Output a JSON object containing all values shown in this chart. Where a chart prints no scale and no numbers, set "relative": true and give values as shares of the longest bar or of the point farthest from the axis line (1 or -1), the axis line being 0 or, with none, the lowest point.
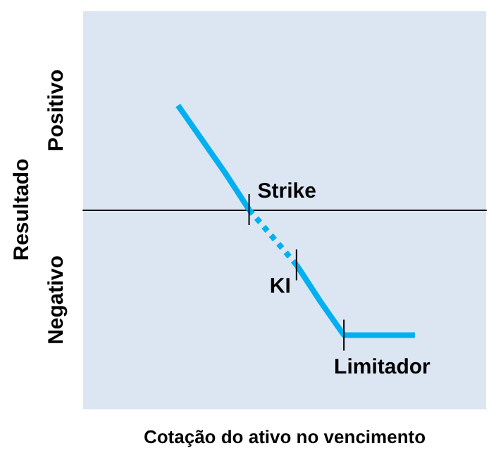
{
  "chart_data": {
    "type": "line",
    "relative": true,
    "xlabel": "Cotação do ativo no vencimento",
    "ylabel": "Resultado",
    "categories": [
      null,
      null,
      null,
      null,
      null,
      null,
      null,
      null,
      null,
      null,
      null,
      null,
      null,
      null,
      null,
      null,
      null,
      null
    ],
    "series": [
      {
        "color": "#00b0f0",
        "line_style": "solid",
        "values": [
          null,
          null,
          null,
          null,
          0.83,
          0.56,
          0.29,
          0,
          null,
          null,
          null,
          null,
          null,
          null,
          null,
          null,
          null,
          null
        ]
      },
      {
        "color": "#00b0f0",
        "line_style": "dotted",
        "values": [
          null,
          null,
          null,
          null,
          null,
          null,
          null,
          0,
          -0.22,
          -0.44,
          null,
          null,
          null,
          null,
          null,
          null,
          null,
          null
        ]
      },
      {
        "color": "#00b0f0",
        "line_style": "solid",
        "values": [
          null,
          null,
          null,
          null,
          null,
          null,
          null,
          null,
          null,
          -0.44,
          -0.73,
          -1,
          -1,
          -1,
          -1,
          null,
          null,
          null
        ]
      }
    ],
    "annotations": [
      "Strike",
      "KI",
      "Limitador",
      "Positivo",
      "Negativo"
    ],
    "grid": false,
    "marker": "none"
  }
}
